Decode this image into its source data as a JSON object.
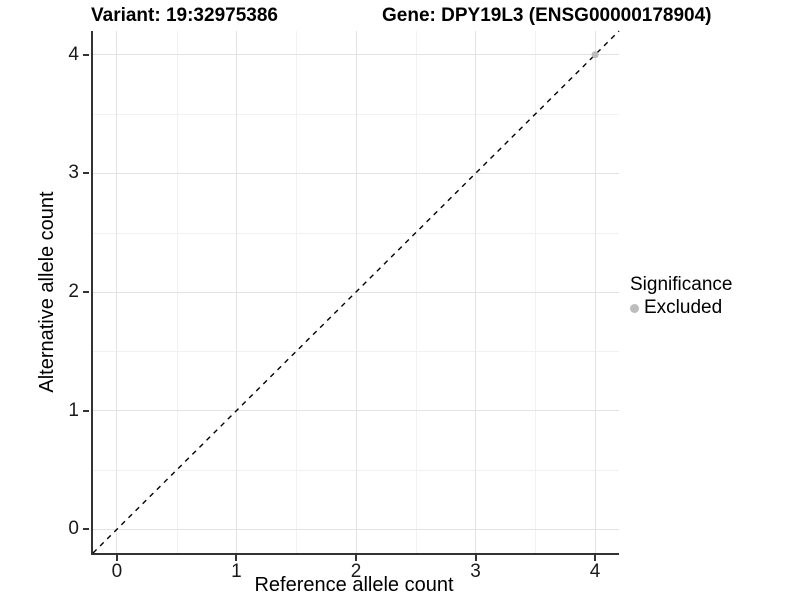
{
  "titles": {
    "variant": "Variant: 19:32975386",
    "gene": "Gene: DPY19L3 (ENSG00000178904)"
  },
  "legend": {
    "title": "Significance",
    "items": [
      {
        "label": "Excluded",
        "color": "#bdbdbd"
      }
    ]
  },
  "chart_data": {
    "type": "scatter",
    "title": "Variant: 19:32975386   Gene: DPY19L3 (ENSG00000178904)",
    "xlabel": "Reference allele count",
    "ylabel": "Alternative allele count",
    "xlim": [
      -0.2,
      4.2
    ],
    "ylim": [
      -0.2,
      4.2
    ],
    "x_ticks": [
      0,
      1,
      2,
      3,
      4
    ],
    "y_ticks": [
      0,
      1,
      2,
      3,
      4
    ],
    "x_minor_ticks": [
      0.5,
      1.5,
      2.5,
      3.5
    ],
    "y_minor_ticks": [
      0.5,
      1.5,
      2.5,
      3.5
    ],
    "grid": true,
    "legend_position": "right",
    "series": [
      {
        "name": "Excluded",
        "color": "#bdbdbd",
        "points": [
          [
            4,
            4
          ]
        ]
      }
    ],
    "reference_line": {
      "type": "identity",
      "style": "dashed",
      "from": [
        -0.2,
        -0.2
      ],
      "to": [
        4.2,
        4.2
      ],
      "color": "#000000"
    }
  },
  "colors": {
    "grid_major": "#e3e3e3",
    "grid_minor": "#f1f1f1",
    "axis": "#333333",
    "tick_text": "#1a1a1a",
    "point": "#bdbdbd"
  }
}
